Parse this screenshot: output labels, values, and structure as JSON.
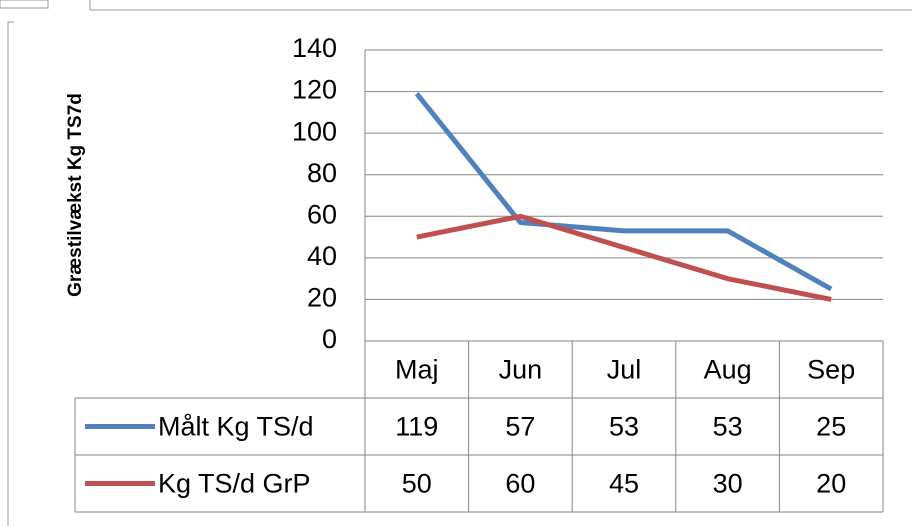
{
  "chart_data": {
    "type": "line",
    "y_label": "Græstilvækst Kg TS7d",
    "categories": [
      "Maj",
      "Jun",
      "Jul",
      "Aug",
      "Sep"
    ],
    "series": [
      {
        "name": "Målt Kg TS/d",
        "color": "#4f81bd",
        "values": [
          119,
          57,
          53,
          53,
          25
        ]
      },
      {
        "name": "Kg TS/d GrP",
        "color": "#c0504d",
        "values": [
          50,
          60,
          45,
          30,
          20
        ]
      }
    ],
    "ylim": [
      0,
      140
    ],
    "yticks": [
      0,
      20,
      40,
      60,
      80,
      100,
      120,
      140
    ],
    "grid": true,
    "data_table": true
  }
}
